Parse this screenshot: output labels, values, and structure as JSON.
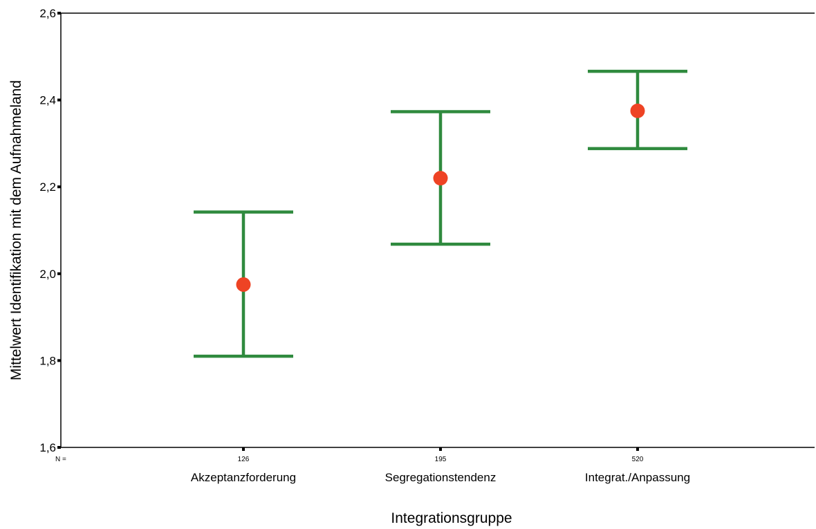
{
  "chart_data": {
    "type": "errorbar",
    "xlabel": "Integrationsgruppe",
    "ylabel": "Mittelwert Identifikation mit dem Aufnahmeland",
    "ylim": [
      1.6,
      2.6
    ],
    "yticks": [
      "1,6",
      "1,8",
      "2,0",
      "2,2",
      "2,4",
      "2,6"
    ],
    "n_prefix": "N =",
    "categories": [
      "Akzeptanzforderung",
      "Segregationstendenz",
      "Integrat./Anpassung"
    ],
    "n": [
      "126",
      "195",
      "520"
    ],
    "mean": [
      1.975,
      2.22,
      2.375
    ],
    "ci_lower": [
      1.81,
      2.068,
      2.288
    ],
    "ci_upper": [
      2.142,
      2.373,
      2.466
    ],
    "grid": false,
    "colors": {
      "errorbar": "#2f8a3e",
      "point": "#ee4324",
      "axis": "#000000"
    }
  }
}
